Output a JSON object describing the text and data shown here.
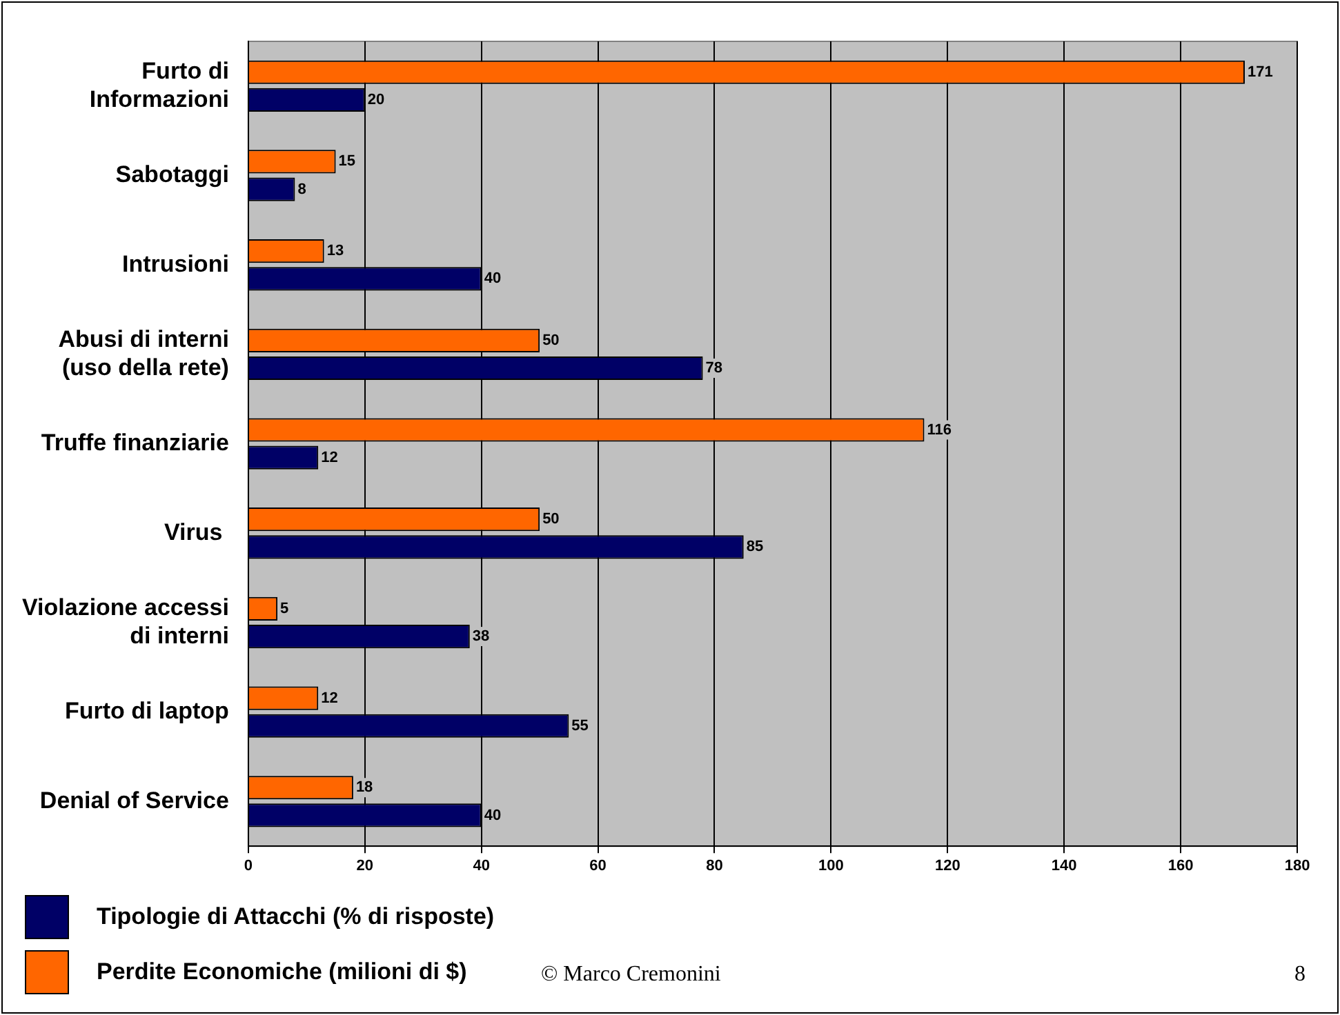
{
  "chart_data": {
    "type": "bar",
    "orientation": "horizontal",
    "categories": [
      "Furto di\nInformazioni",
      "Sabotaggi",
      "Intrusioni",
      "Abusi di interni\n(uso della rete)",
      "Truffe finanziarie",
      "Virus ",
      "Violazione accessi\ndi interni",
      "Furto di laptop",
      "Denial of Service"
    ],
    "series": [
      {
        "name": "Perdite Economiche (milioni di $)",
        "color": "#ff6600",
        "values": [
          171,
          15,
          13,
          50,
          116,
          50,
          5,
          12,
          18
        ]
      },
      {
        "name": "Tipologie di Attacchi (% di risposte)",
        "color": "#000066",
        "values": [
          20,
          8,
          40,
          78,
          12,
          85,
          38,
          55,
          40
        ]
      }
    ],
    "xlim": [
      0,
      180
    ],
    "xticks": [
      0,
      20,
      40,
      60,
      80,
      100,
      120,
      140,
      160,
      180
    ],
    "grid": "x",
    "legend": "bottom left",
    "data_labels": true,
    "annotations": [
      "© Marco Cremonini",
      "8"
    ]
  }
}
